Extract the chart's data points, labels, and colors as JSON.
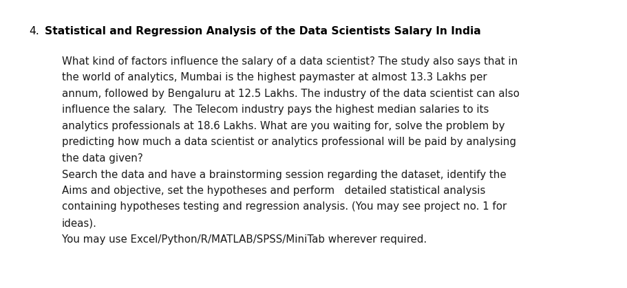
{
  "background_color": "#ffffff",
  "heading_number": "4.",
  "heading_bold": "Statistical and Regression Analysis of the Data Scientists Salary In India",
  "paragraph1_lines": [
    "What kind of factors influence the salary of a data scientist? The study also says that in",
    "the world of analytics, Mumbai is the highest paymaster at almost 13.3 Lakhs per",
    "annum, followed by Bengaluru at 12.5 Lakhs. The industry of the data scientist can also",
    "influence the salary.  The Telecom industry pays the highest median salaries to its",
    "analytics professionals at 18.6 Lakhs. What are you waiting for, solve the problem by",
    "predicting how much a data scientist or analytics professional will be paid by analysing",
    "the data given?"
  ],
  "paragraph2_lines": [
    "Search the data and have a brainstorming session regarding the dataset, identify the",
    "Aims and objective, set the hypotheses and perform   detailed statistical analysis",
    "containing hypotheses testing and regression analysis. (You may see project no. 1 for",
    "ideas)."
  ],
  "paragraph3": "You may use Excel/Python/R/MATLAB/SPSS/MiniTab wherever required.",
  "text_color": "#1a1a1a",
  "heading_color": "#000000",
  "font_size_heading": 11.2,
  "font_size_body": 10.8,
  "font_family": "Georgia"
}
